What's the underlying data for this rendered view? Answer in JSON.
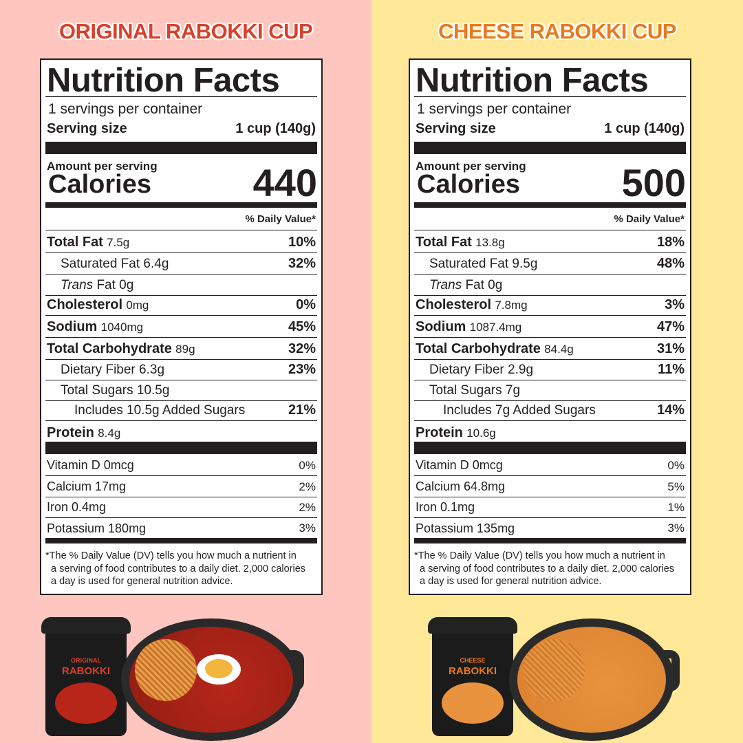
{
  "colors": {
    "left_bg": "#ffc6c0",
    "right_bg": "#ffe898",
    "left_title": "#d9402b",
    "right_title": "#e8791e"
  },
  "products": [
    {
      "heading": "ORIGINAL RABOKKI CUP",
      "cup_logo": {
        "line1": "ORIGINAL",
        "line2": "RABOKKI"
      },
      "label": {
        "title": "Nutrition Facts",
        "servings": "1 servings per container",
        "serving_size_label": "Serving size",
        "serving_size": "1 cup (140g)",
        "amount_per_serving": "Amount per serving",
        "calories_label": "Calories",
        "calories": "440",
        "dv_header": "% Daily Value*",
        "rows": [
          {
            "name": "Total Fat",
            "amount": "7.5g",
            "dv": "10%"
          },
          {
            "name": "Saturated Fat 6.4g",
            "amount": "",
            "dv": "32%"
          },
          {
            "name": "Trans",
            "amount": "Fat 0g",
            "dv": ""
          },
          {
            "name": "Cholesterol",
            "amount": "0mg",
            "dv": "0%"
          },
          {
            "name": "Sodium",
            "amount": "1040mg",
            "dv": "45%"
          },
          {
            "name": "Total Carbohydrate",
            "amount": "89g",
            "dv": "32%"
          },
          {
            "name": "Dietary Fiber 6.3g",
            "amount": "",
            "dv": "23%"
          },
          {
            "name": "Total Sugars  10.5g",
            "amount": "",
            "dv": ""
          },
          {
            "name": "Includes 10.5g  Added Sugars",
            "amount": "",
            "dv": "21%"
          },
          {
            "name": "Protein",
            "amount": "8.4g",
            "dv": ""
          }
        ],
        "vitamins": [
          {
            "name": "Vitamin D 0mcg",
            "dv": "0%"
          },
          {
            "name": "Calcium 17mg",
            "dv": "2%"
          },
          {
            "name": "Iron 0.4mg",
            "dv": "2%"
          },
          {
            "name": "Potassium 180mg",
            "dv": "3%"
          }
        ],
        "footnote": "*The % Daily Value (DV) tells you how much a nutrient in\n  a serving of food contributes to a daily diet. 2,000 calories\n  a day is used for general nutrition advice."
      }
    },
    {
      "heading": "CHEESE RABOKKI CUP",
      "cup_logo": {
        "line1": "CHEESE",
        "line2": "RABOKKI"
      },
      "label": {
        "title": "Nutrition Facts",
        "servings": "1 servings per container",
        "serving_size_label": "Serving size",
        "serving_size": "1 cup (140g)",
        "amount_per_serving": "Amount per serving",
        "calories_label": "Calories",
        "calories": "500",
        "dv_header": "% Daily Value*",
        "rows": [
          {
            "name": "Total Fat",
            "amount": "13.8g",
            "dv": "18%"
          },
          {
            "name": "Saturated Fat 9.5g",
            "amount": "",
            "dv": "48%"
          },
          {
            "name": "Trans",
            "amount": "Fat 0g",
            "dv": ""
          },
          {
            "name": "Cholesterol",
            "amount": "7.8mg",
            "dv": "3%"
          },
          {
            "name": "Sodium",
            "amount": "1087.4mg",
            "dv": "47%"
          },
          {
            "name": "Total Carbohydrate",
            "amount": "84.4g",
            "dv": "31%"
          },
          {
            "name": "Dietary Fiber 2.9g",
            "amount": "",
            "dv": "11%"
          },
          {
            "name": "Total Sugars  7g",
            "amount": "",
            "dv": ""
          },
          {
            "name": "Includes 7g  Added Sugars",
            "amount": "",
            "dv": "14%"
          },
          {
            "name": "Protein",
            "amount": "10.6g",
            "dv": ""
          }
        ],
        "vitamins": [
          {
            "name": "Vitamin D 0mcg",
            "dv": "0%"
          },
          {
            "name": "Calcium 64.8mg",
            "dv": "5%"
          },
          {
            "name": "Iron 0.1mg",
            "dv": "1%"
          },
          {
            "name": "Potassium 135mg",
            "dv": "3%"
          }
        ],
        "footnote": "*The % Daily Value (DV) tells you how much a nutrient in\n  a serving of food contributes to a daily diet. 2,000 calories\n  a day is used for general nutrition advice."
      }
    }
  ]
}
